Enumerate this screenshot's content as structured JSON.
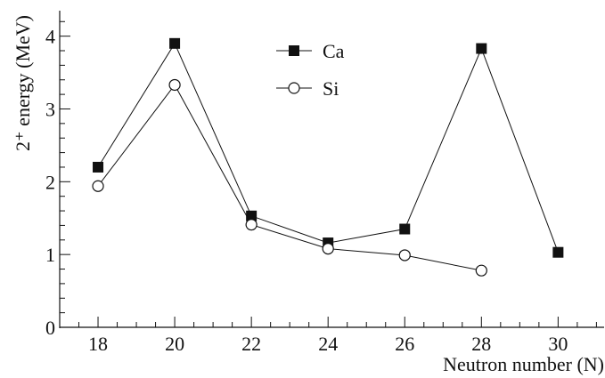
{
  "chart_data": {
    "type": "line",
    "xlabel": "Neutron number (N)",
    "ylabel": "2⁺ energy (MeV)",
    "xlim": [
      17,
      31.2
    ],
    "ylim": [
      0,
      4.35
    ],
    "xticks": [
      18,
      20,
      22,
      24,
      26,
      28,
      30
    ],
    "yticks": [
      0,
      1,
      2,
      3,
      4
    ],
    "xtick_labels": [
      "18",
      "20",
      "22",
      "24",
      "26",
      "28",
      "30"
    ],
    "ytick_labels": [
      "0",
      "1",
      "2",
      "3",
      "4"
    ],
    "legend_position": "top-center",
    "grid": false,
    "series": [
      {
        "name": "Ca",
        "marker": "filled-square",
        "color": "#111111",
        "x": [
          18,
          20,
          22,
          24,
          26,
          28,
          30
        ],
        "y": [
          2.2,
          3.9,
          1.53,
          1.16,
          1.35,
          3.83,
          1.03
        ]
      },
      {
        "name": "Si",
        "marker": "open-circle",
        "color": "#111111",
        "x": [
          18,
          20,
          22,
          24,
          26,
          28
        ],
        "y": [
          1.94,
          3.33,
          1.41,
          1.08,
          0.99,
          0.78
        ]
      }
    ]
  }
}
